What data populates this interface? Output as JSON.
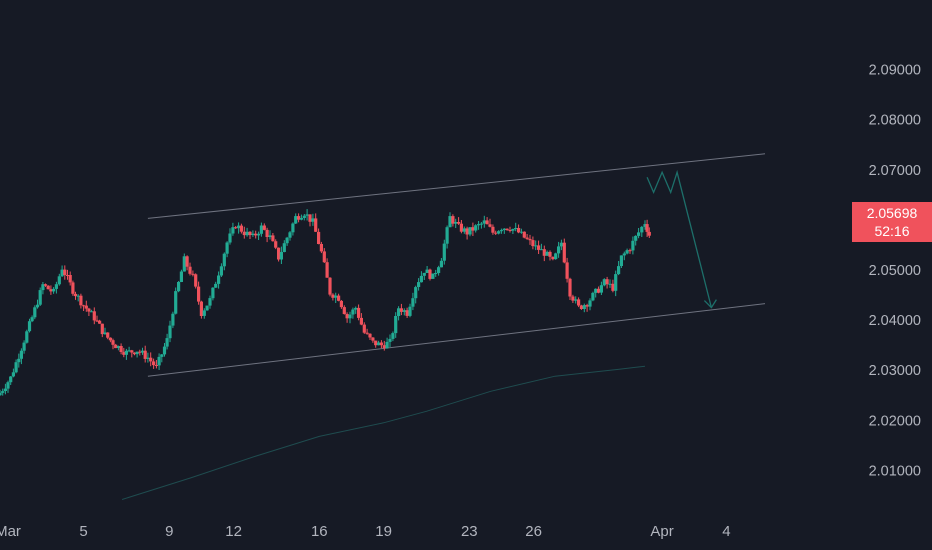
{
  "chart_data": {
    "type": "candlestick",
    "title": "",
    "xlabel": "",
    "ylabel": "",
    "ylim": [
      2.0025,
      2.0995
    ],
    "y_ticks": [
      2.09,
      2.08,
      2.07,
      2.06,
      2.05,
      2.04,
      2.03,
      2.02,
      2.01
    ],
    "y_tick_labels": [
      "2.09000",
      "2.08000",
      "2.07000",
      "2.06000",
      "2.05000",
      "2.04000",
      "2.03000",
      "2.02000",
      "2.01000"
    ],
    "x_tick_labels": [
      "Mar",
      "5",
      "9",
      "12",
      "16",
      "19",
      "23",
      "26",
      "Apr",
      "4"
    ],
    "x_tick_days": [
      1,
      5,
      9,
      12,
      16,
      19,
      23,
      26,
      32,
      35
    ],
    "x_range_days": [
      1.1,
      36.8
    ],
    "up_color": "#22ab94",
    "down_color": "#f0525c",
    "background": "#161a25",
    "grid": false,
    "anchors": [
      [
        1.1,
        2.0255
      ],
      [
        1.6,
        2.0285
      ],
      [
        2.1,
        2.0345
      ],
      [
        2.6,
        2.0405
      ],
      [
        3.1,
        2.047
      ],
      [
        3.6,
        2.0455
      ],
      [
        4.0,
        2.0505
      ],
      [
        4.5,
        2.046
      ],
      [
        5.0,
        2.043
      ],
      [
        5.5,
        2.0405
      ],
      [
        6.0,
        2.037
      ],
      [
        6.5,
        2.035
      ],
      [
        7.0,
        2.0335
      ],
      [
        7.5,
        2.034
      ],
      [
        8.0,
        2.0325
      ],
      [
        8.4,
        2.0305
      ],
      [
        8.9,
        2.036
      ],
      [
        9.3,
        2.045
      ],
      [
        9.7,
        2.052
      ],
      [
        10.1,
        2.0485
      ],
      [
        10.5,
        2.0415
      ],
      [
        10.9,
        2.044
      ],
      [
        11.3,
        2.0495
      ],
      [
        11.7,
        2.0555
      ],
      [
        12.1,
        2.059
      ],
      [
        12.5,
        2.0575
      ],
      [
        12.9,
        2.0565
      ],
      [
        13.3,
        2.0585
      ],
      [
        13.7,
        2.0565
      ],
      [
        14.1,
        2.0525
      ],
      [
        14.5,
        2.0565
      ],
      [
        14.9,
        2.0605
      ],
      [
        15.3,
        2.0615
      ],
      [
        15.7,
        2.0595
      ],
      [
        16.1,
        2.0535
      ],
      [
        16.5,
        2.0455
      ],
      [
        16.9,
        2.0445
      ],
      [
        17.3,
        2.0405
      ],
      [
        17.7,
        2.0425
      ],
      [
        18.1,
        2.0375
      ],
      [
        18.5,
        2.0355
      ],
      [
        18.9,
        2.035
      ],
      [
        19.3,
        2.0355
      ],
      [
        19.7,
        2.0425
      ],
      [
        20.1,
        2.0415
      ],
      [
        20.5,
        2.047
      ],
      [
        20.9,
        2.05
      ],
      [
        21.3,
        2.0485
      ],
      [
        21.7,
        2.0525
      ],
      [
        22.1,
        2.0605
      ],
      [
        22.5,
        2.0585
      ],
      [
        22.9,
        2.0575
      ],
      [
        23.3,
        2.0585
      ],
      [
        23.7,
        2.0595
      ],
      [
        24.1,
        2.0575
      ],
      [
        24.5,
        2.0585
      ],
      [
        24.9,
        2.0585
      ],
      [
        25.3,
        2.0575
      ],
      [
        25.7,
        2.056
      ],
      [
        26.1,
        2.0545
      ],
      [
        26.5,
        2.0535
      ],
      [
        26.9,
        2.0515
      ],
      [
        27.3,
        2.0555
      ],
      [
        27.7,
        2.0455
      ],
      [
        28.1,
        2.0425
      ],
      [
        28.5,
        2.0435
      ],
      [
        28.9,
        2.0455
      ],
      [
        29.3,
        2.0475
      ],
      [
        29.7,
        2.0465
      ],
      [
        30.1,
        2.0525
      ],
      [
        30.5,
        2.0545
      ],
      [
        30.9,
        2.0575
      ],
      [
        31.2,
        2.0595
      ],
      [
        31.4,
        2.057
      ]
    ],
    "candle_step_days": 0.13,
    "channel_upper": [
      [
        8.0,
        2.0603
      ],
      [
        36.8,
        2.0732
      ]
    ],
    "channel_lower": [
      [
        8.0,
        2.0288
      ],
      [
        36.8,
        2.0433
      ]
    ],
    "moving_average": [
      [
        6.8,
        2.0042
      ],
      [
        10.0,
        2.0085
      ],
      [
        13.0,
        2.0128
      ],
      [
        16.0,
        2.0168
      ],
      [
        19.0,
        2.0195
      ],
      [
        21.0,
        2.0218
      ],
      [
        24.0,
        2.0258
      ],
      [
        27.0,
        2.0288
      ],
      [
        30.0,
        2.0302
      ],
      [
        31.2,
        2.0308
      ]
    ],
    "projection_path": [
      [
        31.3,
        2.0685
      ],
      [
        31.6,
        2.0655
      ],
      [
        32.0,
        2.0695
      ],
      [
        32.4,
        2.0655
      ],
      [
        32.7,
        2.0695
      ],
      [
        34.3,
        2.0425
      ]
    ],
    "projection_color": "#1d6f6a",
    "last_price": "2.05698",
    "countdown": "52:16"
  }
}
